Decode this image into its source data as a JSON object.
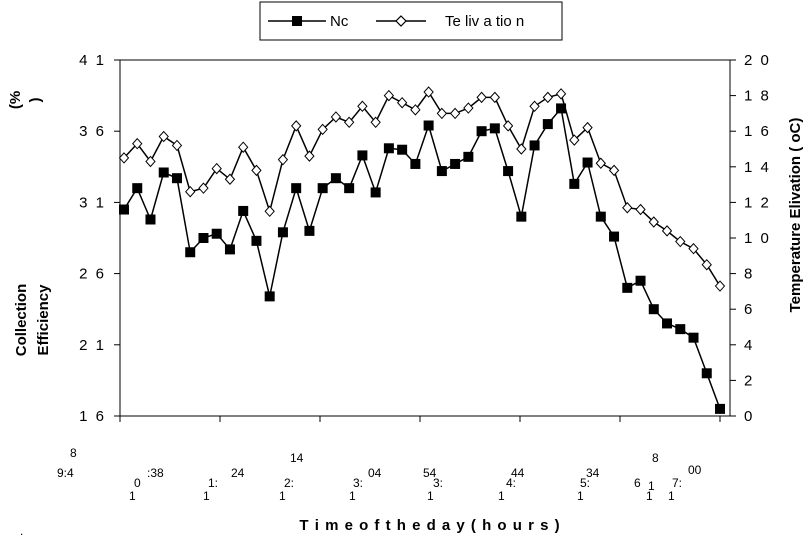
{
  "chart_data": {
    "type": "line",
    "xlabel": "T i m e  o f  t h e  d a y  ( h o u r s )",
    "ylabel_left_line1": "Collection",
    "ylabel_left_line2": "Efficiency",
    "ylabel_left_unit": "(%\n)",
    "ylabel_right": "Temperature Elivation ( oC)",
    "ylim_left": [
      16,
      41
    ],
    "ylim_right": [
      0,
      20
    ],
    "yticks_left": [
      "4 1",
      "3 6",
      "3 1",
      "2 6",
      "2 1",
      "1 6"
    ],
    "yticks_right": [
      "2 0",
      "1 8",
      "1 6",
      "1 4",
      "1 2",
      "1 0",
      "8",
      "6",
      "4",
      "2",
      "0"
    ],
    "xtick_fragments": [
      "8",
      "9:4",
      ":38",
      "0",
      "1",
      "24",
      "1:",
      "1",
      "14",
      "2:",
      "1",
      "04",
      "3:",
      "1",
      "54",
      "3:",
      "1",
      "44",
      "4:",
      "1",
      "34",
      "5:",
      "1",
      "6",
      "8",
      "1",
      "1",
      "00",
      "7:",
      "1",
      "."
    ],
    "grid": false,
    "legend_position": "top-center",
    "series": [
      {
        "name": "Nc",
        "axis": "left",
        "marker": "square",
        "values": [
          30.5,
          32.0,
          29.8,
          33.1,
          32.7,
          27.5,
          28.5,
          28.8,
          27.7,
          30.4,
          28.3,
          24.4,
          28.9,
          32.0,
          29.0,
          32.0,
          32.7,
          32.0,
          34.3,
          31.7,
          34.8,
          34.7,
          33.7,
          36.4,
          33.2,
          33.7,
          34.2,
          36.0,
          36.2,
          33.2,
          30.0,
          35.0,
          36.5,
          37.6,
          32.3,
          33.8,
          30.0,
          28.6,
          25.0,
          25.5,
          23.5,
          22.5,
          22.1,
          21.5,
          19.0,
          16.5
        ]
      },
      {
        "name": "Te liv a tio n",
        "axis": "right",
        "marker": "diamond-open",
        "values": [
          14.5,
          15.3,
          14.3,
          15.7,
          15.2,
          12.6,
          12.8,
          13.9,
          13.3,
          15.1,
          13.8,
          11.5,
          14.4,
          16.3,
          14.6,
          16.1,
          16.8,
          16.5,
          17.4,
          16.5,
          18.0,
          17.6,
          17.2,
          18.2,
          17.0,
          17.0,
          17.3,
          17.9,
          17.9,
          16.3,
          15.0,
          17.4,
          17.9,
          18.1,
          15.5,
          16.2,
          14.2,
          13.8,
          11.7,
          11.6,
          10.9,
          10.4,
          9.8,
          9.4,
          8.5,
          7.3
        ]
      }
    ]
  }
}
